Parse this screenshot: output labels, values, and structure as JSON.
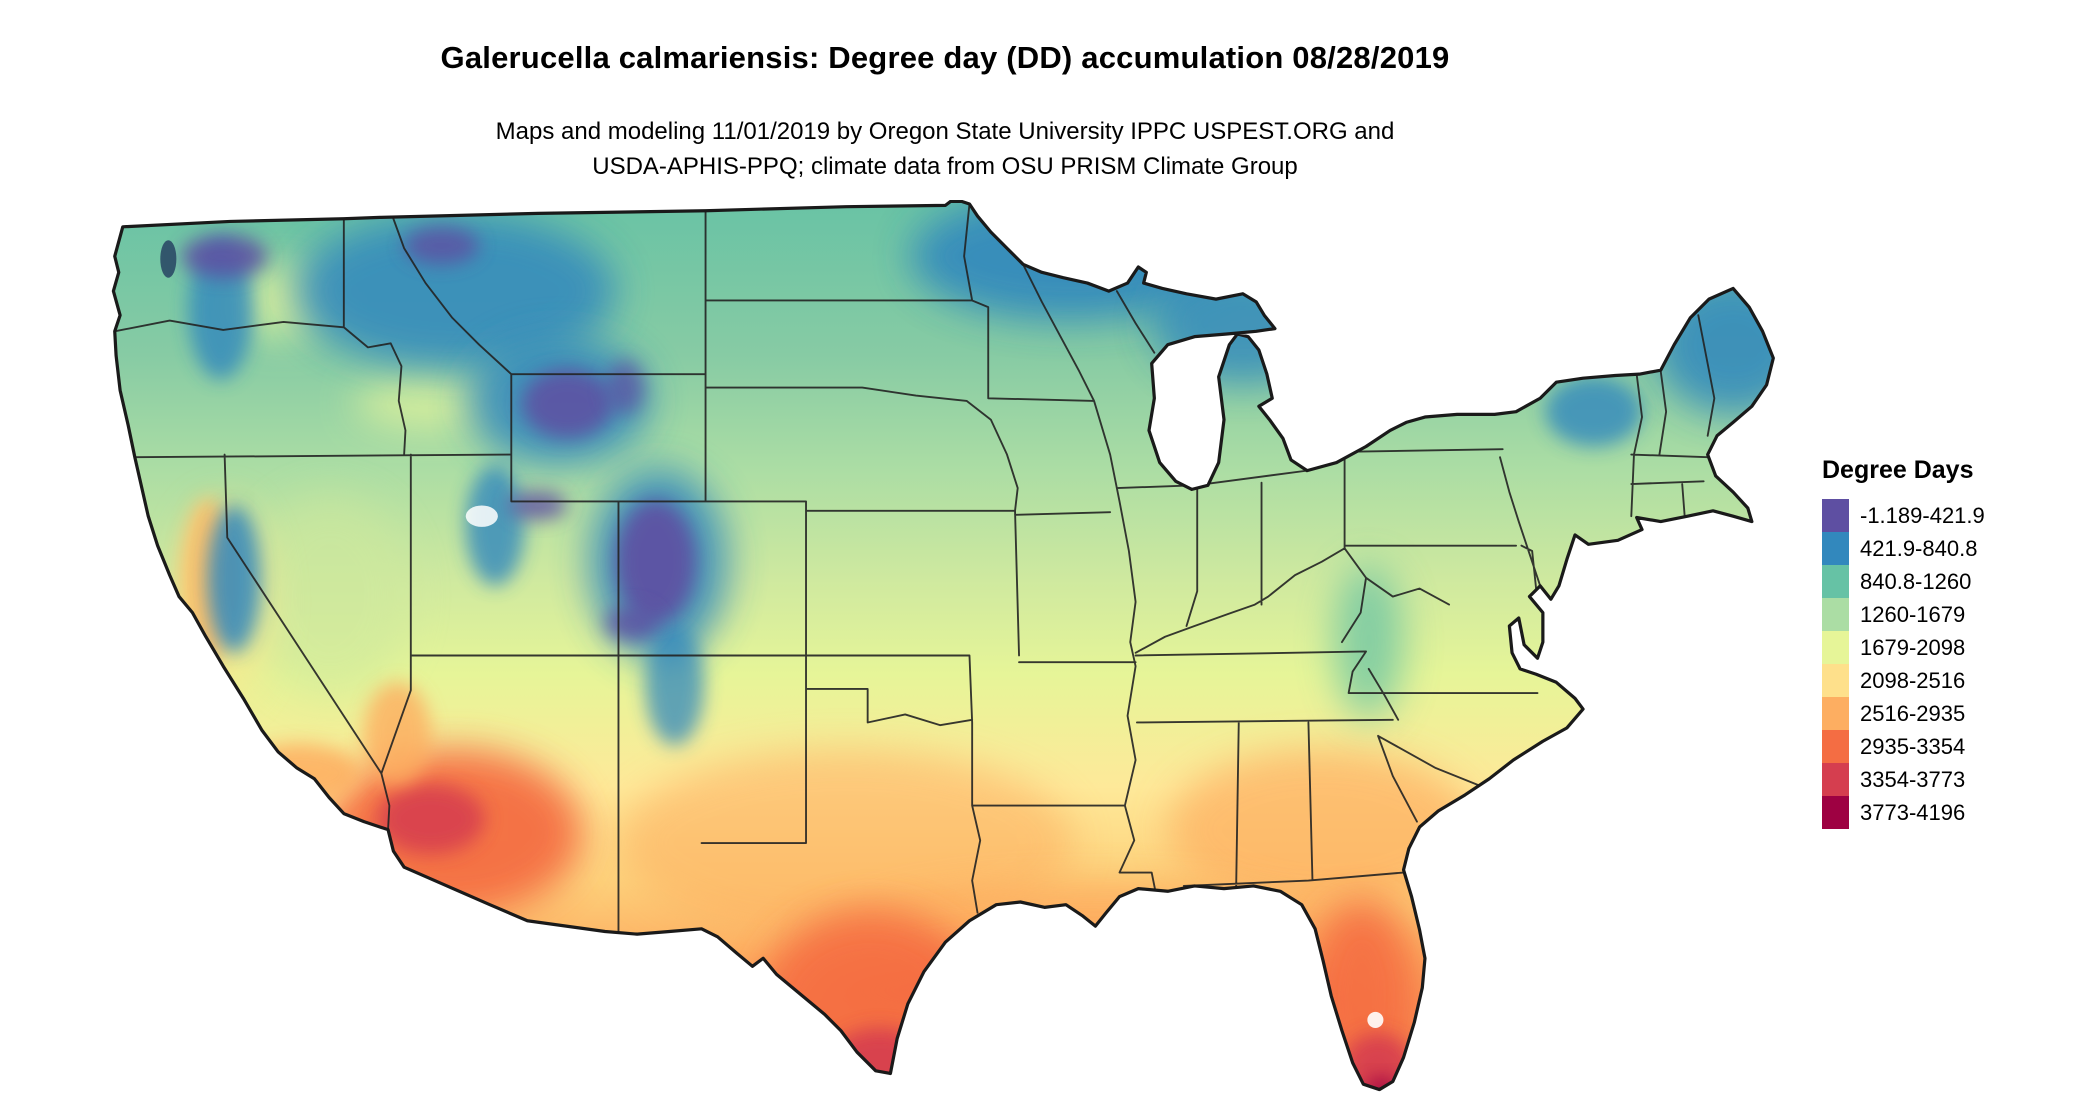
{
  "header": {
    "title": "Galerucella calmariensis: Degree day (DD) accumulation 08/28/2019",
    "subtitle_line1": "Maps and modeling 11/01/2019 by Oregon State University IPPC USPEST.ORG and",
    "subtitle_line2": "USDA-APHIS-PPQ; climate data from OSU PRISM Climate Group"
  },
  "legend": {
    "title": "Degree Days",
    "items": [
      {
        "label": "-1.189-421.9",
        "color": "#5e4fa2"
      },
      {
        "label": "421.9-840.8",
        "color": "#3288bd"
      },
      {
        "label": "840.8-1260",
        "color": "#66c2a5"
      },
      {
        "label": "1260-1679",
        "color": "#abdda4"
      },
      {
        "label": "1679-2098",
        "color": "#e6f598"
      },
      {
        "label": "2098-2516",
        "color": "#fee08b"
      },
      {
        "label": "2516-2935",
        "color": "#fdae61"
      },
      {
        "label": "2935-3354",
        "color": "#f46d43"
      },
      {
        "label": "3354-3773",
        "color": "#d53e4f"
      },
      {
        "label": "3773-4196",
        "color": "#9e0142"
      }
    ]
  },
  "colors": {
    "background": "#ffffff",
    "state_border": "#222222",
    "outline": "#1a1a1a"
  }
}
